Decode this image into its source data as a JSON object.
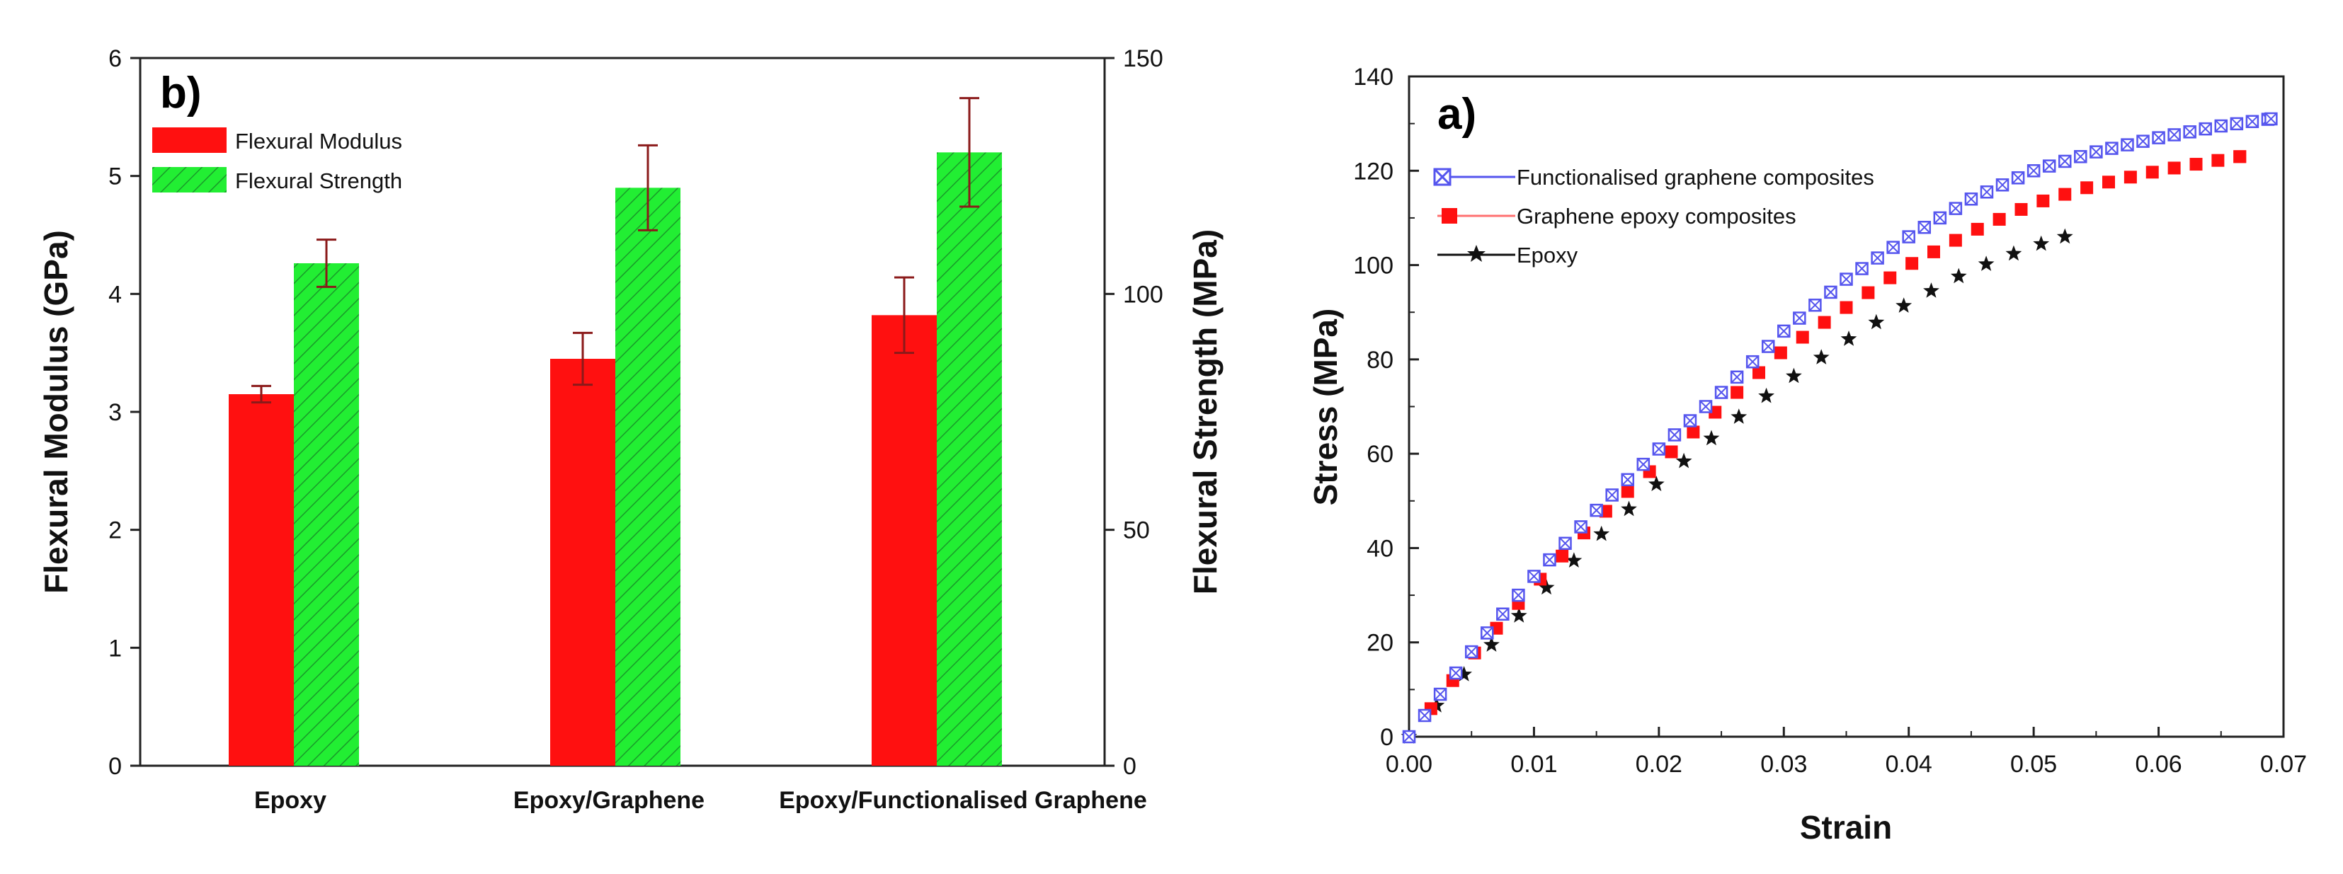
{
  "chart_data": [
    {
      "type": "bar",
      "panel_label": "b)",
      "title": "",
      "categories": [
        "Epoxy",
        "Epoxy/Graphene",
        "Epoxy/Functionalised Graphene"
      ],
      "series": [
        {
          "name": "Flexural Modulus",
          "axis": "left",
          "values": [
            3.15,
            3.45,
            3.82
          ],
          "errors": [
            0.07,
            0.22,
            0.32
          ],
          "color": "#ff1010"
        },
        {
          "name": "Flexural Strength",
          "axis": "right",
          "values": [
            106.5,
            122.5,
            130.0
          ],
          "errors": [
            5.0,
            9.0,
            11.5
          ],
          "color": "#22ee33"
        }
      ],
      "ylabel": "Flexural Modulus (GPa)",
      "ylim": [
        0,
        6
      ],
      "yticks": [
        0,
        1,
        2,
        3,
        4,
        5,
        6
      ],
      "y2label": "Flexural Strength (MPa)",
      "y2lim": [
        0,
        150
      ],
      "y2ticks": [
        0,
        50,
        100,
        150
      ],
      "legend_position": "top-left"
    },
    {
      "type": "scatter",
      "panel_label": "a)",
      "title": "",
      "xlabel": "Strain",
      "ylabel": "Stress (MPa)",
      "xlim": [
        0,
        0.07
      ],
      "ylim": [
        0,
        140
      ],
      "xticks": [
        0.0,
        0.01,
        0.02,
        0.03,
        0.04,
        0.05,
        0.06,
        0.07
      ],
      "xtick_labels": [
        "0.00",
        "0.01",
        "0.02",
        "0.03",
        "0.04",
        "0.05",
        "0.06",
        "0.07"
      ],
      "yticks": [
        0,
        20,
        40,
        60,
        80,
        100,
        120,
        140
      ],
      "legend_position": "top-left",
      "series": [
        {
          "name": "Functionalised graphene composites",
          "marker": "crossed-square",
          "color": "#5555ee",
          "x_end": 0.069,
          "y_end": 131,
          "x": [
            0,
            0.005,
            0.01,
            0.015,
            0.02,
            0.025,
            0.03,
            0.035,
            0.04,
            0.045,
            0.05,
            0.055,
            0.06,
            0.065,
            0.069
          ],
          "y": [
            0,
            18,
            34,
            48,
            61,
            73,
            86,
            97,
            106,
            114,
            120,
            124,
            127,
            129.5,
            131
          ]
        },
        {
          "name": "Graphene epoxy composites",
          "marker": "square",
          "color": "#ff1010",
          "x_end": 0.0665,
          "y_end": 123,
          "x": [
            0,
            0.005,
            0.01,
            0.015,
            0.02,
            0.025,
            0.03,
            0.035,
            0.04,
            0.045,
            0.05,
            0.055,
            0.06,
            0.0665
          ],
          "y": [
            0,
            17,
            32,
            46,
            58,
            70,
            82,
            91,
            100,
            107,
            113,
            117,
            120,
            123
          ]
        },
        {
          "name": "Epoxy",
          "marker": "star",
          "color": "#111111",
          "x_end": 0.0525,
          "y_end": 106,
          "x": [
            0,
            0.005,
            0.01,
            0.015,
            0.02,
            0.025,
            0.03,
            0.035,
            0.04,
            0.045,
            0.05,
            0.0525
          ],
          "y": [
            0,
            15,
            29,
            42,
            54,
            65,
            75,
            84,
            92,
            99,
            104,
            106
          ]
        }
      ]
    }
  ]
}
